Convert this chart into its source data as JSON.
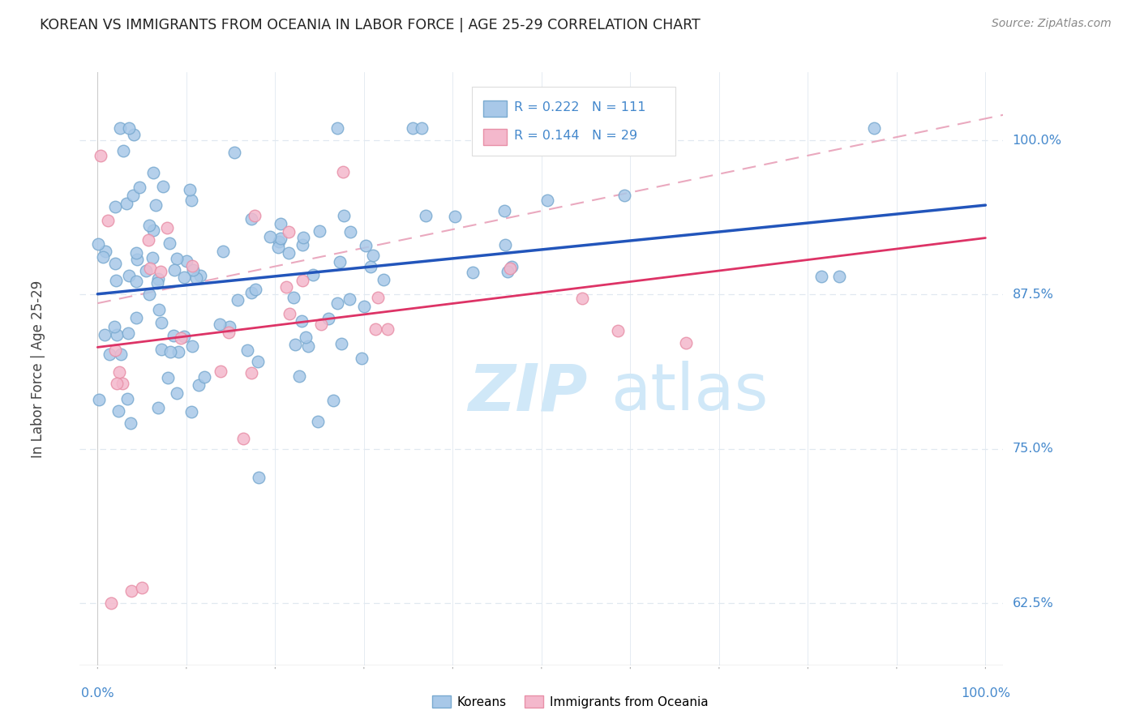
{
  "title": "KOREAN VS IMMIGRANTS FROM OCEANIA IN LABOR FORCE | AGE 25-29 CORRELATION CHART",
  "source": "Source: ZipAtlas.com",
  "ylabel": "In Labor Force | Age 25-29",
  "xlim": [
    -0.02,
    1.02
  ],
  "ylim": [
    0.575,
    1.055
  ],
  "yticks": [
    0.625,
    0.75,
    0.875,
    1.0
  ],
  "ytick_labels": [
    "62.5%",
    "75.0%",
    "87.5%",
    "100.0%"
  ],
  "korean_color": "#a8c8e8",
  "oceania_color": "#f4b8cc",
  "korean_edge": "#7aaad0",
  "oceania_edge": "#e890a8",
  "trend_korean_color": "#2255bb",
  "trend_oceania_color": "#dd3366",
  "trend_dashed_color": "#e8a0b8",
  "R_korean": 0.222,
  "N_korean": 111,
  "R_oceania": 0.144,
  "N_oceania": 29,
  "axis_color": "#4488cc",
  "watermark_zip": "ZIP",
  "watermark_atlas": "atlas",
  "watermark_color": "#d0e8f8",
  "background_color": "#ffffff",
  "grid_color": "#e0e8f0",
  "title_color": "#222222",
  "source_color": "#888888"
}
